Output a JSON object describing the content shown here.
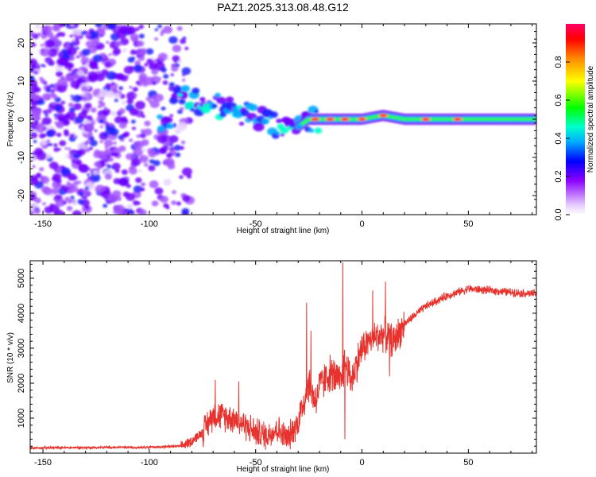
{
  "page_title": "PAZ1.2025.313.08.48.G12",
  "chart_data": [
    {
      "type": "heatmap",
      "title": "PAZ1.2025.313.08.48.G12",
      "xlabel": "Height of straight line (km)",
      "ylabel": "Frequency (Hz)",
      "xlim": [
        -156,
        82
      ],
      "ylim": [
        -25,
        25
      ],
      "x_ticks": [
        -150,
        -100,
        -50,
        0,
        50
      ],
      "x_tick_labels": [
        "-150",
        "-100",
        "-50",
        "0",
        "50"
      ],
      "y_ticks": [
        -20,
        -10,
        0,
        10,
        20
      ],
      "y_tick_labels": [
        "-20",
        "-10",
        "0",
        "10",
        "20"
      ],
      "colorbar": {
        "label": "Normalized spectral amplitude",
        "range": [
          0,
          1
        ],
        "ticks": [
          0.0,
          0.2,
          0.4,
          0.6,
          0.8
        ],
        "tick_labels": [
          "0.0",
          "0.2",
          "0.4",
          "0.6",
          "0.8"
        ]
      },
      "ridge": {
        "description_points_x": [
          -90,
          -80,
          -70,
          -60,
          -50,
          -45,
          -40,
          -35,
          -30,
          -25,
          -20,
          -10,
          0,
          10,
          20,
          40,
          60,
          82
        ],
        "description_points_freq": [
          7,
          5,
          4,
          2,
          1,
          -1,
          -2,
          -3,
          -2,
          0,
          0,
          0,
          0,
          1,
          0,
          0,
          0,
          0
        ],
        "peak_amplitude_x": [
          -22,
          -15,
          -8,
          0,
          10,
          30,
          45
        ]
      }
    },
    {
      "type": "line",
      "xlabel": "Height of straight line (km)",
      "ylabel": "SNR (10 * v/v)",
      "xlim": [
        -156,
        82
      ],
      "ylim": [
        0,
        5500
      ],
      "x_ticks": [
        -150,
        -100,
        -50,
        0,
        50
      ],
      "x_tick_labels": [
        "-150",
        "-100",
        "-50",
        "0",
        "50"
      ],
      "y_ticks": [
        1000,
        2000,
        3000,
        4000,
        5000
      ],
      "y_tick_labels": [
        "1000",
        "2000",
        "3000",
        "4000",
        "5000"
      ],
      "color": "#e8322d",
      "series_envelope": {
        "x": [
          -156,
          -100,
          -85,
          -80,
          -75,
          -70,
          -65,
          -60,
          -55,
          -50,
          -45,
          -40,
          -35,
          -30,
          -25,
          -22,
          -20,
          -15,
          -10,
          -8,
          -5,
          0,
          5,
          10,
          15,
          20,
          25,
          30,
          40,
          50,
          60,
          70,
          82
        ],
        "y": [
          150,
          170,
          200,
          350,
          600,
          1100,
          1050,
          1000,
          800,
          600,
          500,
          700,
          400,
          900,
          2000,
          1500,
          1900,
          2300,
          2000,
          2600,
          2100,
          3000,
          3300,
          3400,
          3200,
          3700,
          3950,
          4200,
          4500,
          4700,
          4650,
          4600,
          4550
        ]
      },
      "spikes": [
        {
          "x": -69,
          "y": 2100
        },
        {
          "x": -58,
          "y": 2050
        },
        {
          "x": -26,
          "y": 4300
        },
        {
          "x": -24,
          "y": 3500
        },
        {
          "x": -9,
          "y": 5450
        },
        {
          "x": -8,
          "y": 400
        },
        {
          "x": 5,
          "y": 4650
        },
        {
          "x": 11,
          "y": 4900
        },
        {
          "x": 13,
          "y": 2200
        }
      ]
    }
  ]
}
